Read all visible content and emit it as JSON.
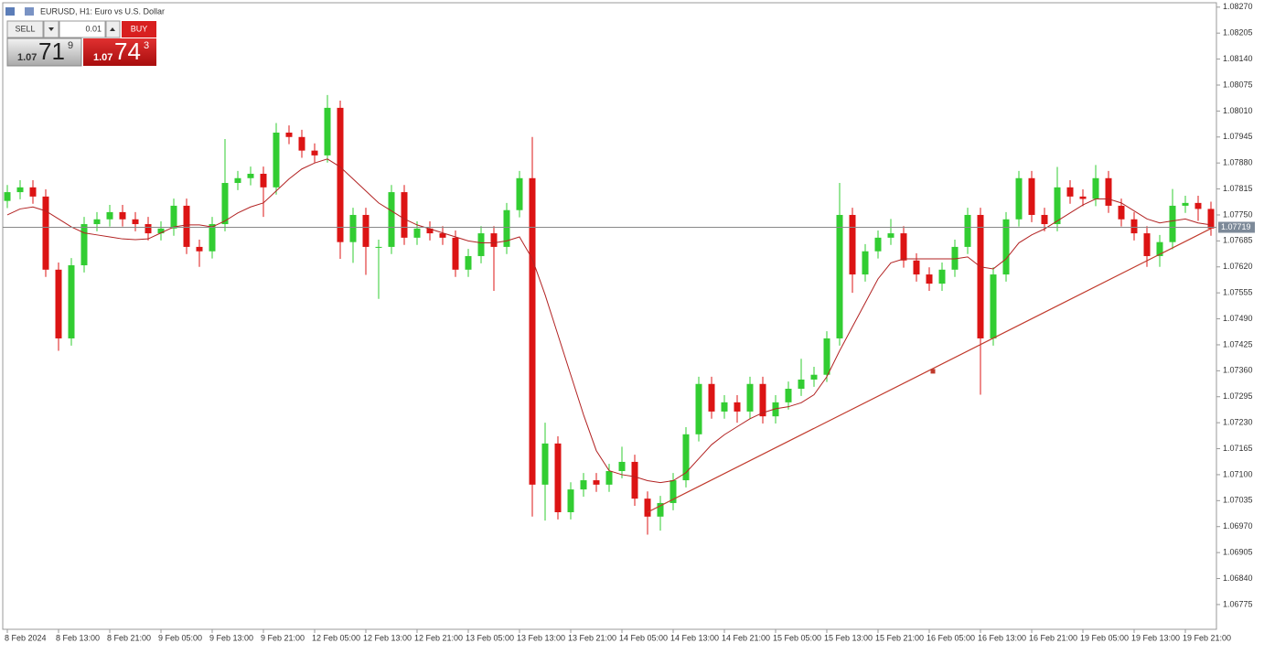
{
  "header": {
    "title": "EURUSD, H1:  Euro vs U.S. Dollar"
  },
  "trade_panel": {
    "sell": "SELL",
    "lot": "0.01",
    "buy": "BUY",
    "bid": {
      "big_figure": "1.07",
      "pips": "71",
      "fraction": "9"
    },
    "ask": {
      "big_figure": "1.07",
      "pips": "74",
      "fraction": "3"
    }
  },
  "chart_data": {
    "type": "candlestick",
    "categories": [
      "8 Feb 2024",
      null,
      null,
      null,
      "8 Feb 13:00",
      null,
      null,
      null,
      "8 Feb 21:00",
      null,
      null,
      null,
      "9 Feb 05:00",
      null,
      null,
      null,
      "9 Feb 13:00",
      null,
      null,
      null,
      "9 Feb 21:00",
      null,
      null,
      null,
      "12 Feb 05:00",
      null,
      null,
      null,
      "12 Feb 13:00",
      null,
      null,
      null,
      "12 Feb 21:00",
      null,
      null,
      null,
      "13 Feb 05:00",
      null,
      null,
      null,
      "13 Feb 13:00",
      null,
      null,
      null,
      "13 Feb 21:00",
      null,
      null,
      null,
      "14 Feb 05:00",
      null,
      null,
      null,
      "14 Feb 13:00",
      null,
      null,
      null,
      "14 Feb 21:00",
      null,
      null,
      null,
      "15 Feb 05:00",
      null,
      null,
      null,
      "15 Feb 13:00",
      null,
      null,
      null,
      "15 Feb 21:00",
      null,
      null,
      null,
      "16 Feb 05:00",
      null,
      null,
      null,
      "16 Feb 13:00",
      null,
      null,
      null,
      "16 Feb 21:00",
      null,
      null,
      null,
      "19 Feb 05:00",
      null,
      null,
      null,
      "19 Feb 13:00",
      null,
      null,
      null,
      "19 Feb 21:00",
      null,
      null
    ],
    "open": [
      1.07785,
      1.07807,
      1.07819,
      1.07796,
      1.07613,
      1.07441,
      1.07624,
      1.07727,
      1.07739,
      1.07757,
      1.07739,
      1.07727,
      1.07704,
      1.07716,
      1.07773,
      1.0767,
      1.07659,
      1.07727,
      1.0783,
      1.07842,
      1.07853,
      1.07819,
      1.07956,
      1.07945,
      1.07911,
      1.07899,
      1.08018,
      1.07682,
      1.0775,
      1.0767,
      1.0767,
      1.07807,
      1.07693,
      1.07716,
      1.07704,
      1.07693,
      1.07613,
      1.07647,
      1.07704,
      1.0767,
      1.07762,
      1.07842,
      1.07075,
      1.07178,
      1.07006,
      1.07063,
      1.07086,
      1.07075,
      1.07109,
      1.07132,
      1.0704,
      1.06995,
      1.07029,
      1.07086,
      1.07201,
      1.07327,
      1.07258,
      1.07281,
      1.07258,
      1.07327,
      1.07246,
      1.07281,
      1.07315,
      1.07338,
      1.0735,
      1.07441,
      1.0775,
      1.07601,
      1.07659,
      1.07693,
      1.07704,
      1.07636,
      1.07601,
      1.07578,
      1.07613,
      1.0767,
      1.0775,
      1.07441,
      1.07601,
      1.07739,
      1.07842,
      1.0775,
      1.07727,
      1.07819,
      1.07796,
      1.0779,
      1.07842,
      1.07773,
      1.07739,
      1.07704,
      1.07647,
      1.07682,
      1.07773,
      1.0778,
      1.07765
    ],
    "high": [
      1.07825,
      1.07837,
      1.07837,
      1.07814,
      1.07631,
      1.07642,
      1.07745,
      1.07757,
      1.07775,
      1.07775,
      1.07757,
      1.07745,
      1.07734,
      1.07791,
      1.07791,
      1.07688,
      1.07745,
      1.0794,
      1.0786,
      1.07871,
      1.07871,
      1.0798,
      1.07974,
      1.07963,
      1.07929,
      1.0805,
      1.08036,
      1.07768,
      1.07768,
      1.07688,
      1.07825,
      1.07825,
      1.07734,
      1.07734,
      1.07722,
      1.07711,
      1.07665,
      1.07722,
      1.07722,
      1.0778,
      1.0786,
      1.07945,
      1.0723,
      1.07196,
      1.07081,
      1.07104,
      1.07104,
      1.07127,
      1.0717,
      1.0715,
      1.07058,
      1.07047,
      1.07104,
      1.07219,
      1.07345,
      1.07345,
      1.07299,
      1.07299,
      1.07345,
      1.07345,
      1.07299,
      1.07333,
      1.0739,
      1.0737,
      1.07459,
      1.0783,
      1.07768,
      1.07677,
      1.07711,
      1.0774,
      1.07722,
      1.07654,
      1.07619,
      1.07631,
      1.07688,
      1.07768,
      1.07768,
      1.07619,
      1.07757,
      1.0786,
      1.0786,
      1.07768,
      1.0787,
      1.07837,
      1.07814,
      1.07875,
      1.0786,
      1.07791,
      1.07757,
      1.07722,
      1.077,
      1.07815,
      1.07798,
      1.07798,
      1.07783
    ],
    "low": [
      1.07767,
      1.07789,
      1.07778,
      1.07595,
      1.0741,
      1.07423,
      1.07606,
      1.07709,
      1.07721,
      1.07721,
      1.07709,
      1.07686,
      1.07686,
      1.07698,
      1.07652,
      1.0762,
      1.07641,
      1.07709,
      1.07812,
      1.07824,
      1.07745,
      1.07801,
      1.07927,
      1.07893,
      1.07881,
      1.07881,
      1.0764,
      1.0763,
      1.076,
      1.0754,
      1.07652,
      1.07675,
      1.07675,
      1.07686,
      1.07675,
      1.07595,
      1.07595,
      1.07629,
      1.0756,
      1.07652,
      1.07744,
      1.06995,
      1.06985,
      1.06988,
      1.06988,
      1.07045,
      1.07057,
      1.07057,
      1.07091,
      1.07022,
      1.0695,
      1.0696,
      1.07011,
      1.07068,
      1.07183,
      1.0724,
      1.0724,
      1.0723,
      1.0724,
      1.07228,
      1.07228,
      1.07263,
      1.07297,
      1.0732,
      1.07332,
      1.07423,
      1.07555,
      1.07583,
      1.07641,
      1.07675,
      1.07618,
      1.07583,
      1.0756,
      1.0756,
      1.07595,
      1.07652,
      1.073,
      1.07423,
      1.07583,
      1.07721,
      1.07732,
      1.07709,
      1.07709,
      1.07778,
      1.07772,
      1.07772,
      1.07755,
      1.07721,
      1.07686,
      1.0762,
      1.0762,
      1.07664,
      1.07755,
      1.07735,
      1.07698
    ],
    "close": [
      1.07807,
      1.07819,
      1.07796,
      1.07613,
      1.07441,
      1.07624,
      1.07727,
      1.07739,
      1.07757,
      1.07739,
      1.07727,
      1.07704,
      1.07716,
      1.07773,
      1.0767,
      1.07659,
      1.07727,
      1.0783,
      1.07842,
      1.07853,
      1.07819,
      1.07956,
      1.07945,
      1.07911,
      1.07899,
      1.08018,
      1.07682,
      1.0775,
      1.0767,
      1.0767,
      1.07807,
      1.07693,
      1.07716,
      1.07704,
      1.07693,
      1.07613,
      1.07647,
      1.07704,
      1.0767,
      1.07762,
      1.07842,
      1.07075,
      1.07178,
      1.07006,
      1.07063,
      1.07086,
      1.07075,
      1.07109,
      1.07132,
      1.0704,
      1.06995,
      1.07029,
      1.07086,
      1.07201,
      1.07327,
      1.07258,
      1.07281,
      1.07258,
      1.07327,
      1.07246,
      1.07281,
      1.07315,
      1.07338,
      1.0735,
      1.07441,
      1.0775,
      1.07601,
      1.07659,
      1.07693,
      1.07704,
      1.07636,
      1.07601,
      1.07578,
      1.07613,
      1.0767,
      1.0775,
      1.07441,
      1.07601,
      1.07739,
      1.07842,
      1.0775,
      1.07727,
      1.07819,
      1.07796,
      1.0779,
      1.07842,
      1.07773,
      1.07739,
      1.07704,
      1.07647,
      1.07682,
      1.07773,
      1.0778,
      1.07765,
      1.07716
    ],
    "up_color": "#32cd32",
    "down_color": "#dc1414",
    "ma": {
      "color": "#b22222",
      "values": [
        1.0775,
        1.07765,
        1.0777,
        1.0776,
        1.0774,
        1.0772,
        1.07705,
        1.077,
        1.07695,
        1.0769,
        1.07688,
        1.0769,
        1.07705,
        1.0772,
        1.07725,
        1.07725,
        1.0772,
        1.07735,
        1.07755,
        1.0777,
        1.0778,
        1.0781,
        1.0784,
        1.07865,
        1.0788,
        1.0789,
        1.0787,
        1.0784,
        1.0781,
        1.0778,
        1.0776,
        1.0774,
        1.07725,
        1.07715,
        1.07705,
        1.07695,
        1.07685,
        1.0768,
        1.0768,
        1.07685,
        1.07695,
        1.0764,
        1.0755,
        1.0745,
        1.0735,
        1.0725,
        1.0716,
        1.0711,
        1.071,
        1.07095,
        1.07085,
        1.0708,
        1.07085,
        1.07105,
        1.0714,
        1.07175,
        1.072,
        1.0722,
        1.0724,
        1.07255,
        1.07265,
        1.0727,
        1.0728,
        1.073,
        1.07345,
        1.0741,
        1.0747,
        1.0753,
        1.0759,
        1.0763,
        1.0764,
        1.0764,
        1.0764,
        1.0764,
        1.0764,
        1.07645,
        1.0762,
        1.07615,
        1.0764,
        1.0768,
        1.077,
        1.07715,
        1.07735,
        1.07755,
        1.07775,
        1.0779,
        1.0779,
        1.0778,
        1.0776,
        1.0774,
        1.0773,
        1.07735,
        1.0774,
        1.0773,
        1.07725
      ]
    },
    "trendline": {
      "color": "#c0392b",
      "x": [
        50,
        94
      ],
      "values": [
        1.07006,
        1.07716
      ]
    },
    "current_price": 1.07719,
    "ylim": [
      1.06713,
      1.08281
    ],
    "yticks": [
      {
        "value": 1.0827,
        "label": "1.08270"
      },
      1.08205,
      {
        "value": 1.0814,
        "label": "1.08140"
      },
      1.08075,
      {
        "value": 1.0801,
        "label": "1.08010"
      },
      1.07945,
      {
        "value": 1.0788,
        "label": "1.07880"
      },
      1.07815,
      {
        "value": 1.0775,
        "label": "1.07750"
      },
      1.07685,
      {
        "value": 1.0762,
        "label": "1.07620"
      },
      1.07555,
      {
        "value": 1.0749,
        "label": "1.07490"
      },
      1.07425,
      {
        "value": 1.0736,
        "label": "1.07360"
      },
      1.07295,
      {
        "value": 1.0723,
        "label": "1.07230"
      },
      1.07165,
      {
        "value": 1.071,
        "label": "1.07100"
      },
      1.07035,
      {
        "value": 1.0697,
        "label": "1.06970"
      },
      1.06905,
      {
        "value": 1.0684,
        "label": "1.06840"
      },
      1.06775
    ]
  }
}
